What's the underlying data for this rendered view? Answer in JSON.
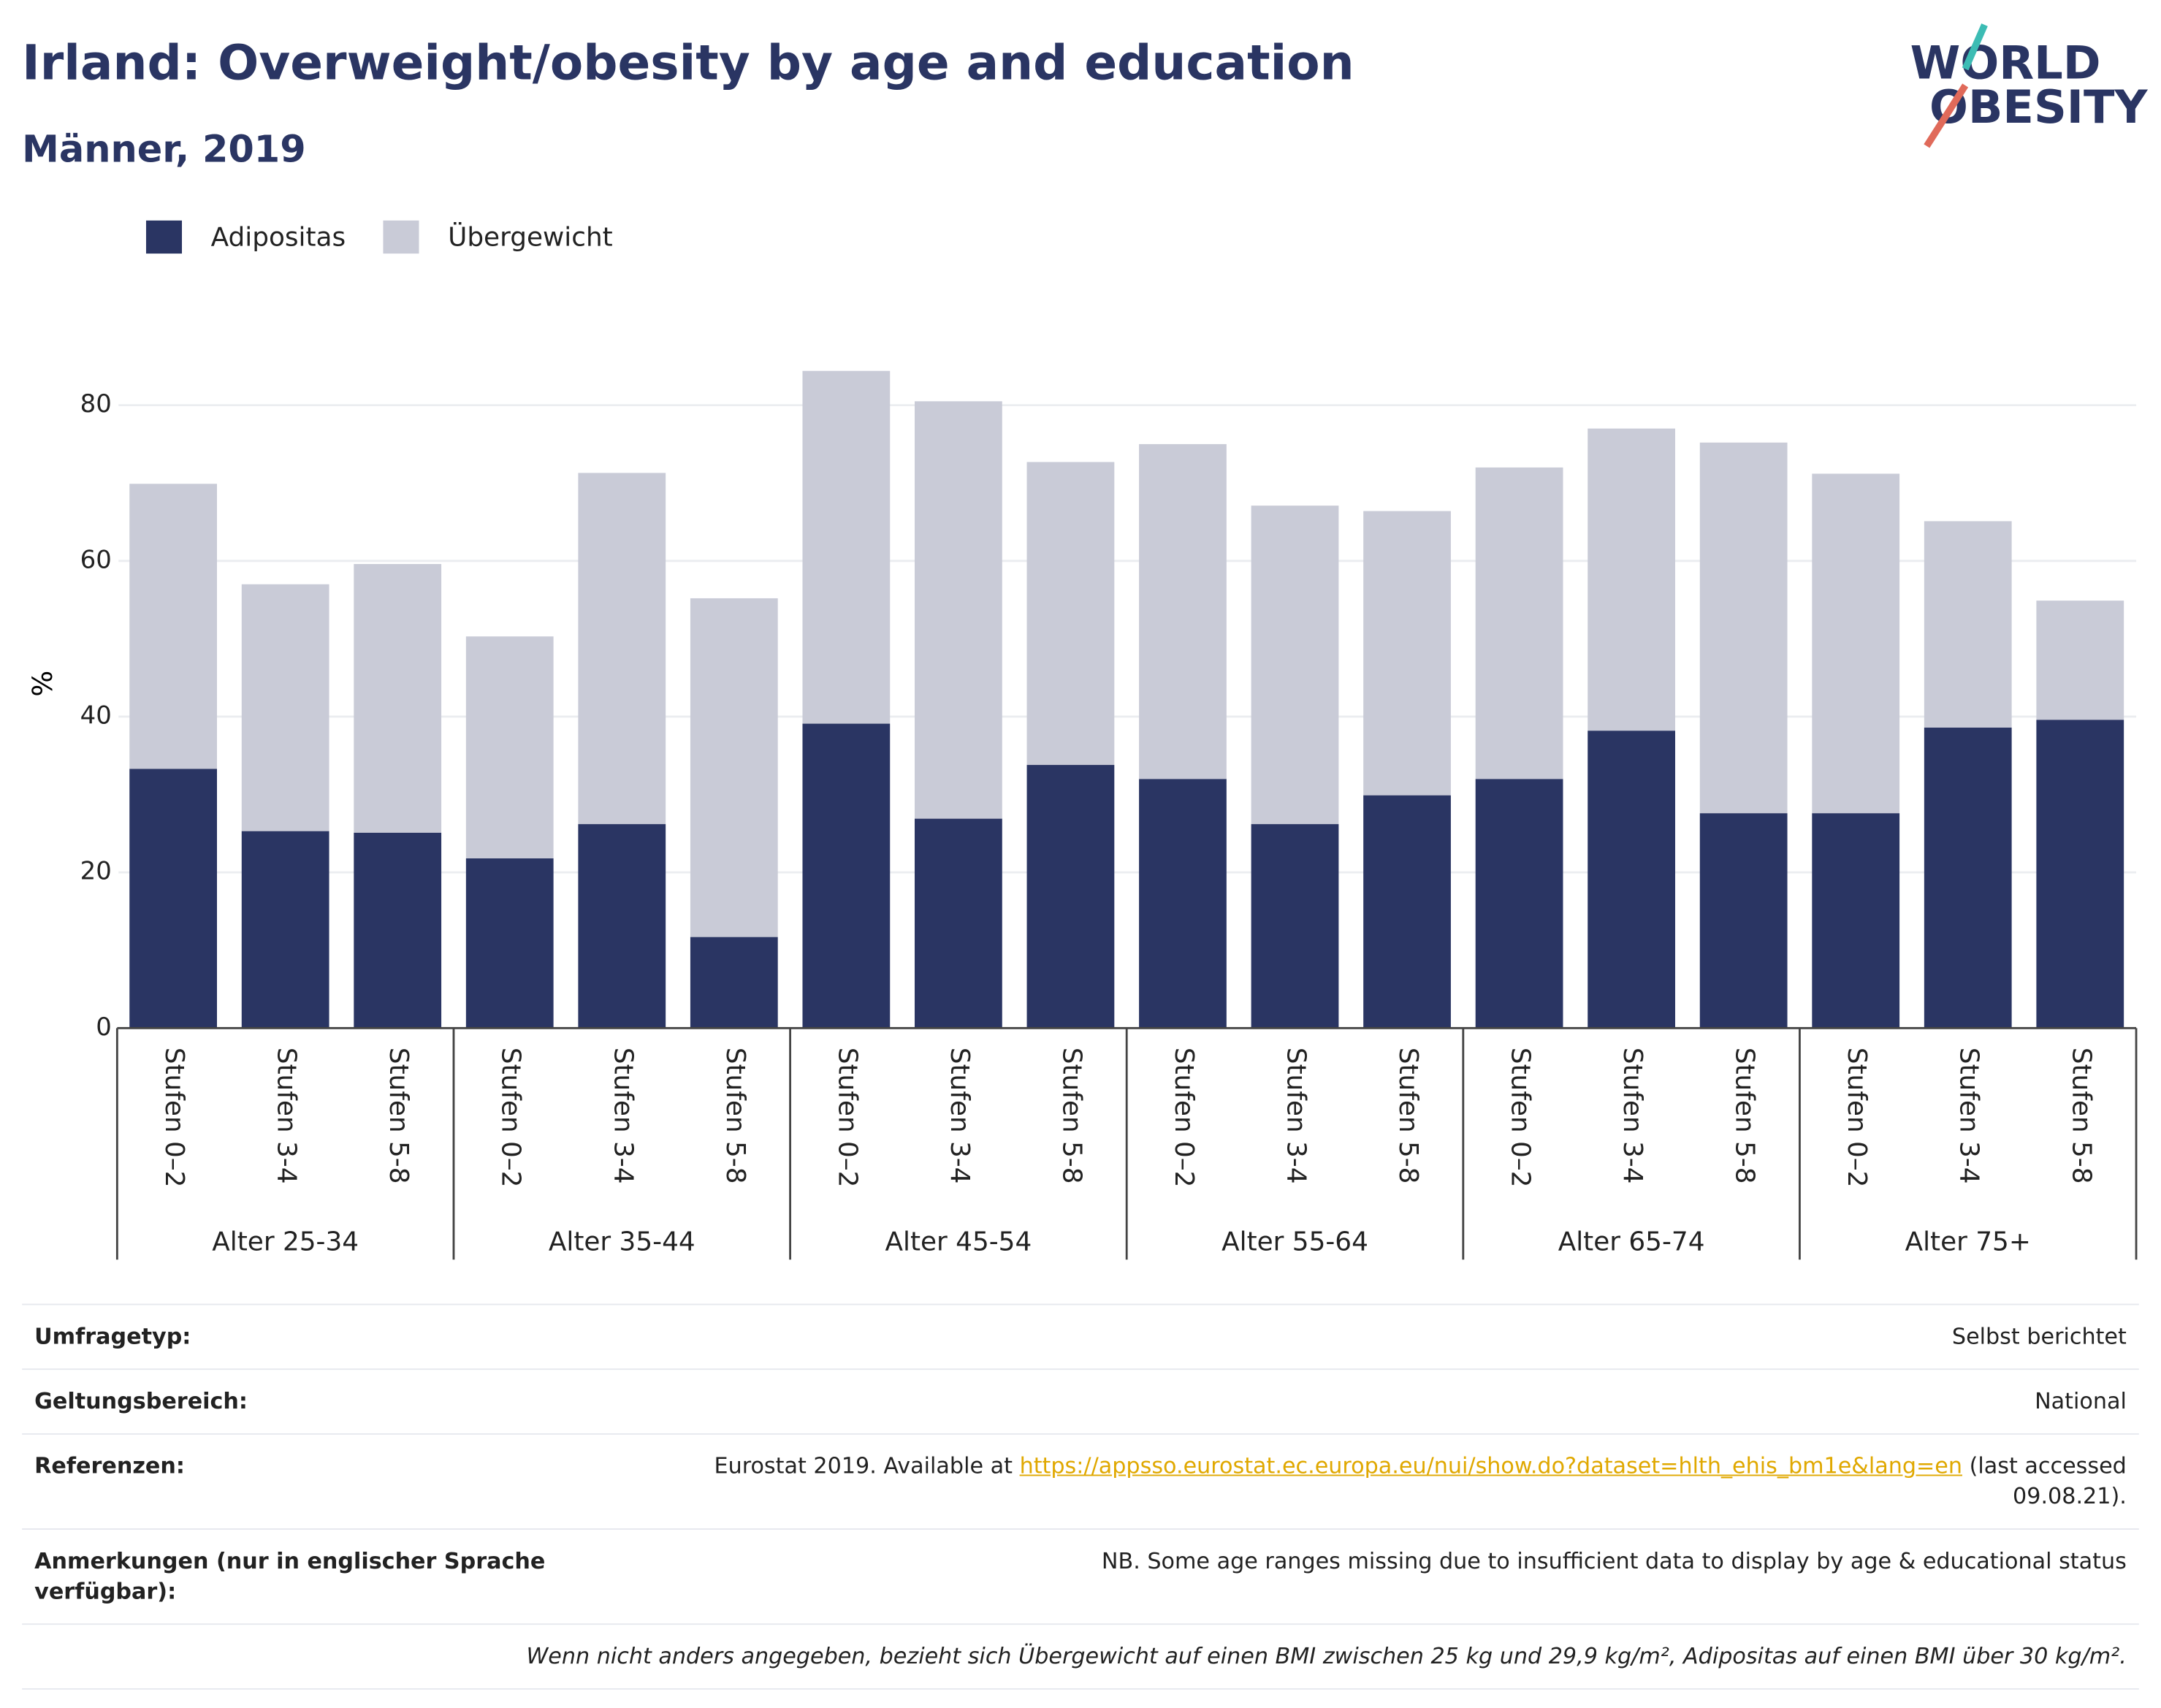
{
  "chart_data": {
    "type": "bar",
    "stacked": true,
    "title": "Irland: Overweight/obesity by age and education",
    "subtitle": "Männer, 2019",
    "logo": [
      "WORLD",
      "OBESITY"
    ],
    "ylabel": "%",
    "categories": [
      "Stufen 0–2",
      "Stufen 3-4",
      "Stufen 5-8",
      "Stufen 0–2",
      "Stufen 3-4",
      "Stufen 5-8",
      "Stufen 0–2",
      "Stufen 3-4",
      "Stufen 5-8",
      "Stufen 0–2",
      "Stufen 3-4",
      "Stufen 5-8",
      "Stufen 0–2",
      "Stufen 3-4",
      "Stufen 5-8",
      "Stufen 0–2",
      "Stufen 3-4",
      "Stufen 5-8"
    ],
    "groups": [
      "Alter 25-34",
      "Alter 35-44",
      "Alter 45-54",
      "Alter 55-64",
      "Alter 65-74",
      "Alter 75+"
    ],
    "series": [
      {
        "name": "Adipositas",
        "color": "#2a3563",
        "values": [
          33.3,
          25.3,
          25.1,
          21.8,
          26.2,
          11.7,
          39.1,
          26.9,
          33.8,
          32.0,
          26.2,
          29.9,
          32.0,
          38.2,
          27.6,
          27.6,
          38.6,
          39.6
        ]
      },
      {
        "name": "Übergewicht",
        "color": "#c9cbd7",
        "values": [
          36.6,
          31.7,
          34.5,
          28.5,
          45.1,
          43.5,
          45.3,
          53.6,
          38.9,
          43.0,
          40.9,
          36.5,
          40.0,
          38.8,
          47.6,
          43.6,
          26.5,
          15.3
        ]
      }
    ],
    "ylim": [
      0,
      86
    ],
    "yticks": [
      0,
      20,
      40,
      60,
      80
    ],
    "grid": true,
    "legend": "top-left"
  },
  "info": {
    "rows": [
      {
        "label": "Umfragetyp:",
        "value": "Selbst berichtet"
      },
      {
        "label": "Geltungsbereich:",
        "value": "National"
      },
      {
        "label": "Referenzen:",
        "value": "Eurostat 2019. Available at ",
        "link": "https://appsso.eurostat.ec.europa.eu/nui/show.do?dataset=hlth_ehis_bm1e&lang=en",
        "suffix": " (last accessed 09.08.21)."
      },
      {
        "label": "Anmerkungen (nur in englischer Sprache verfügbar):",
        "value": "NB. Some age ranges missing due to insufficient data to display by age & educational status"
      }
    ],
    "footnote": "Wenn nicht anders angegeben, bezieht sich Übergewicht auf einen BMI zwischen 25 kg und 29,9 kg/m², Adipositas auf einen BMI über 30 kg/m²."
  }
}
